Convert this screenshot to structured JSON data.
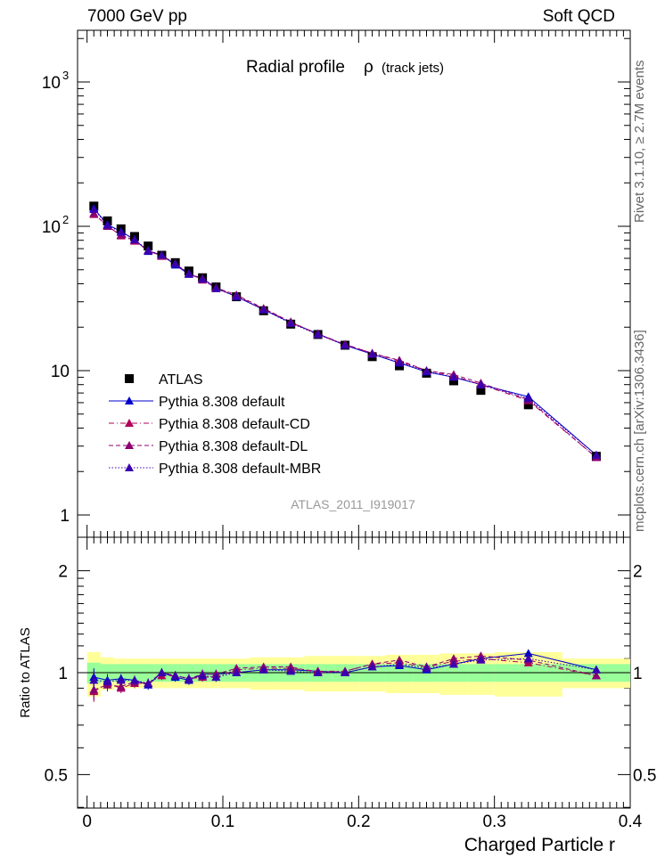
{
  "header": {
    "left": "7000 GeV pp",
    "right": "Soft QCD"
  },
  "side_labels": {
    "rivet": "Rivet 3.1.10, ≥ 2.7M events",
    "source": "mcplots.cern.ch [arXiv:1306.3436]"
  },
  "chart_data": [
    {
      "type": "scatter",
      "title": "Radial profile",
      "title_symbol": "ρ",
      "title_suffix": "(track jets)",
      "watermark": "ATLAS_2011_I919017",
      "yscale": "log",
      "ylim": [
        0.7,
        2400
      ],
      "xlim": [
        -0.007,
        0.4
      ],
      "ytick_labels": [
        "1",
        "10",
        "10",
        "10"
      ],
      "ytick_exponents": [
        "",
        "",
        "2",
        "3"
      ],
      "legend_position": "lower-left",
      "x": [
        0.005,
        0.015,
        0.025,
        0.035,
        0.045,
        0.055,
        0.065,
        0.075,
        0.085,
        0.095,
        0.11,
        0.13,
        0.15,
        0.17,
        0.19,
        0.21,
        0.23,
        0.25,
        0.27,
        0.29,
        0.325,
        0.375
      ],
      "series": [
        {
          "name": "ATLAS",
          "marker": "square",
          "color": "#000000",
          "line": "none",
          "values": [
            138,
            109,
            96,
            85,
            73,
            63,
            56,
            49,
            44,
            38,
            32.5,
            26,
            21,
            17.8,
            15,
            12.5,
            10.8,
            9.6,
            8.5,
            7.3,
            5.8,
            2.55
          ]
        },
        {
          "name": "Pythia 8.308 default",
          "marker": "triangle",
          "color": "#0000cc",
          "line": "solid",
          "values": [
            133,
            103,
            92,
            81,
            67,
            63,
            54,
            46.5,
            43.5,
            37.5,
            32.5,
            26.5,
            21.5,
            18,
            15,
            13,
            11.3,
            9.8,
            9,
            8,
            6.6,
            2.6
          ]
        },
        {
          "name": "Pythia 8.308 default-CD",
          "marker": "triangle",
          "color": "#b0005a",
          "line": "dashdot",
          "values": [
            121,
            101,
            86,
            79,
            68,
            62,
            55,
            47,
            42.5,
            37,
            33,
            26.8,
            21.6,
            18,
            15.2,
            13.2,
            11.6,
            10,
            9.2,
            8,
            6.2,
            2.5
          ]
        },
        {
          "name": "Pythia 8.308 default-DL",
          "marker": "triangle",
          "color": "#8b0070",
          "line": "dashed",
          "values": [
            123,
            100,
            87,
            80,
            68,
            63,
            55,
            47,
            43.5,
            37.5,
            33.5,
            27,
            21.8,
            17.8,
            15.2,
            13.2,
            11.8,
            10,
            9.4,
            8.2,
            6.3,
            2.5
          ]
        },
        {
          "name": "Pythia 8.308 default-MBR",
          "marker": "triangle",
          "color": "#3a00b0",
          "line": "dotted",
          "values": [
            131,
            102,
            91,
            81,
            68,
            63,
            55,
            47,
            43,
            37,
            32.6,
            26.4,
            21.3,
            17.8,
            15,
            13,
            11.4,
            9.9,
            9,
            8,
            6.4,
            2.6
          ]
        }
      ]
    },
    {
      "type": "scatter",
      "ylabel": "Ratio to ATLAS",
      "xlabel": "Charged Particle r",
      "ylim": [
        0.4,
        2.35
      ],
      "xlim": [
        -0.007,
        0.4
      ],
      "ytick_labels": [
        "0.5",
        "1",
        "2"
      ],
      "xtick_labels": [
        "0",
        "0.1",
        "0.2",
        "0.3",
        "0.4"
      ],
      "x": [
        0.005,
        0.015,
        0.025,
        0.035,
        0.045,
        0.055,
        0.065,
        0.075,
        0.085,
        0.095,
        0.11,
        0.13,
        0.15,
        0.17,
        0.19,
        0.21,
        0.23,
        0.25,
        0.27,
        0.29,
        0.325,
        0.375
      ],
      "bin_edges": [
        0,
        0.01,
        0.02,
        0.03,
        0.04,
        0.05,
        0.06,
        0.07,
        0.08,
        0.09,
        0.1,
        0.12,
        0.14,
        0.16,
        0.18,
        0.2,
        0.22,
        0.24,
        0.26,
        0.28,
        0.3,
        0.35,
        0.4
      ],
      "bands": {
        "yellow": {
          "color": "#ffff99",
          "halfwidth": [
            0.15,
            0.11,
            0.1,
            0.1,
            0.1,
            0.1,
            0.1,
            0.1,
            0.1,
            0.1,
            0.1,
            0.11,
            0.11,
            0.12,
            0.12,
            0.12,
            0.13,
            0.13,
            0.14,
            0.14,
            0.15,
            0.1
          ]
        },
        "green": {
          "color": "#99ff99",
          "halfwidth": [
            0.07,
            0.06,
            0.06,
            0.06,
            0.06,
            0.06,
            0.06,
            0.06,
            0.06,
            0.06,
            0.06,
            0.06,
            0.06,
            0.06,
            0.06,
            0.06,
            0.06,
            0.06,
            0.06,
            0.06,
            0.06,
            0.06
          ]
        }
      },
      "series": [
        {
          "name": "Pythia 8.308 default",
          "color": "#0000cc",
          "line": "solid",
          "values": [
            0.97,
            0.95,
            0.96,
            0.95,
            0.92,
            1.0,
            0.97,
            0.95,
            0.99,
            0.99,
            1.0,
            1.02,
            1.02,
            1.01,
            1.0,
            1.04,
            1.05,
            1.02,
            1.06,
            1.1,
            1.14,
            1.02
          ],
          "errors": [
            0.06,
            0.04,
            0.03,
            0.03,
            0.03,
            0.03,
            0.03,
            0.03,
            0.03,
            0.03,
            0.02,
            0.02,
            0.02,
            0.02,
            0.02,
            0.02,
            0.02,
            0.02,
            0.02,
            0.02,
            0.02,
            0.02
          ]
        },
        {
          "name": "Pythia 8.308 default-CD",
          "color": "#b0005a",
          "line": "dashdot",
          "values": [
            0.88,
            0.93,
            0.9,
            0.93,
            0.93,
            0.98,
            0.98,
            0.96,
            0.97,
            0.97,
            1.02,
            1.03,
            1.03,
            1.01,
            1.01,
            1.06,
            1.07,
            1.04,
            1.08,
            1.1,
            1.07,
            0.98
          ],
          "errors": [
            0.06,
            0.04,
            0.03,
            0.03,
            0.03,
            0.03,
            0.03,
            0.03,
            0.03,
            0.03,
            0.02,
            0.02,
            0.02,
            0.02,
            0.02,
            0.02,
            0.02,
            0.02,
            0.02,
            0.02,
            0.02,
            0.02
          ]
        },
        {
          "name": "Pythia 8.308 default-DL",
          "color": "#8b0070",
          "line": "dashed",
          "values": [
            0.89,
            0.92,
            0.91,
            0.94,
            0.93,
            1.0,
            0.98,
            0.96,
            0.99,
            0.99,
            1.03,
            1.04,
            1.04,
            1.0,
            1.01,
            1.06,
            1.09,
            1.04,
            1.1,
            1.12,
            1.09,
            0.98
          ],
          "errors": [
            0.06,
            0.04,
            0.03,
            0.03,
            0.03,
            0.03,
            0.03,
            0.03,
            0.03,
            0.03,
            0.02,
            0.02,
            0.02,
            0.02,
            0.02,
            0.02,
            0.02,
            0.02,
            0.02,
            0.02,
            0.02,
            0.02
          ]
        },
        {
          "name": "Pythia 8.308 default-MBR",
          "color": "#3a00b0",
          "line": "dotted",
          "values": [
            0.95,
            0.94,
            0.95,
            0.95,
            0.93,
            1.0,
            0.98,
            0.96,
            0.98,
            0.97,
            1.0,
            1.02,
            1.01,
            1.0,
            1.0,
            1.04,
            1.06,
            1.03,
            1.06,
            1.09,
            1.1,
            1.02
          ],
          "errors": [
            0.06,
            0.04,
            0.03,
            0.03,
            0.03,
            0.03,
            0.03,
            0.03,
            0.03,
            0.03,
            0.02,
            0.02,
            0.02,
            0.02,
            0.02,
            0.02,
            0.02,
            0.02,
            0.02,
            0.02,
            0.02,
            0.02
          ]
        }
      ]
    }
  ]
}
